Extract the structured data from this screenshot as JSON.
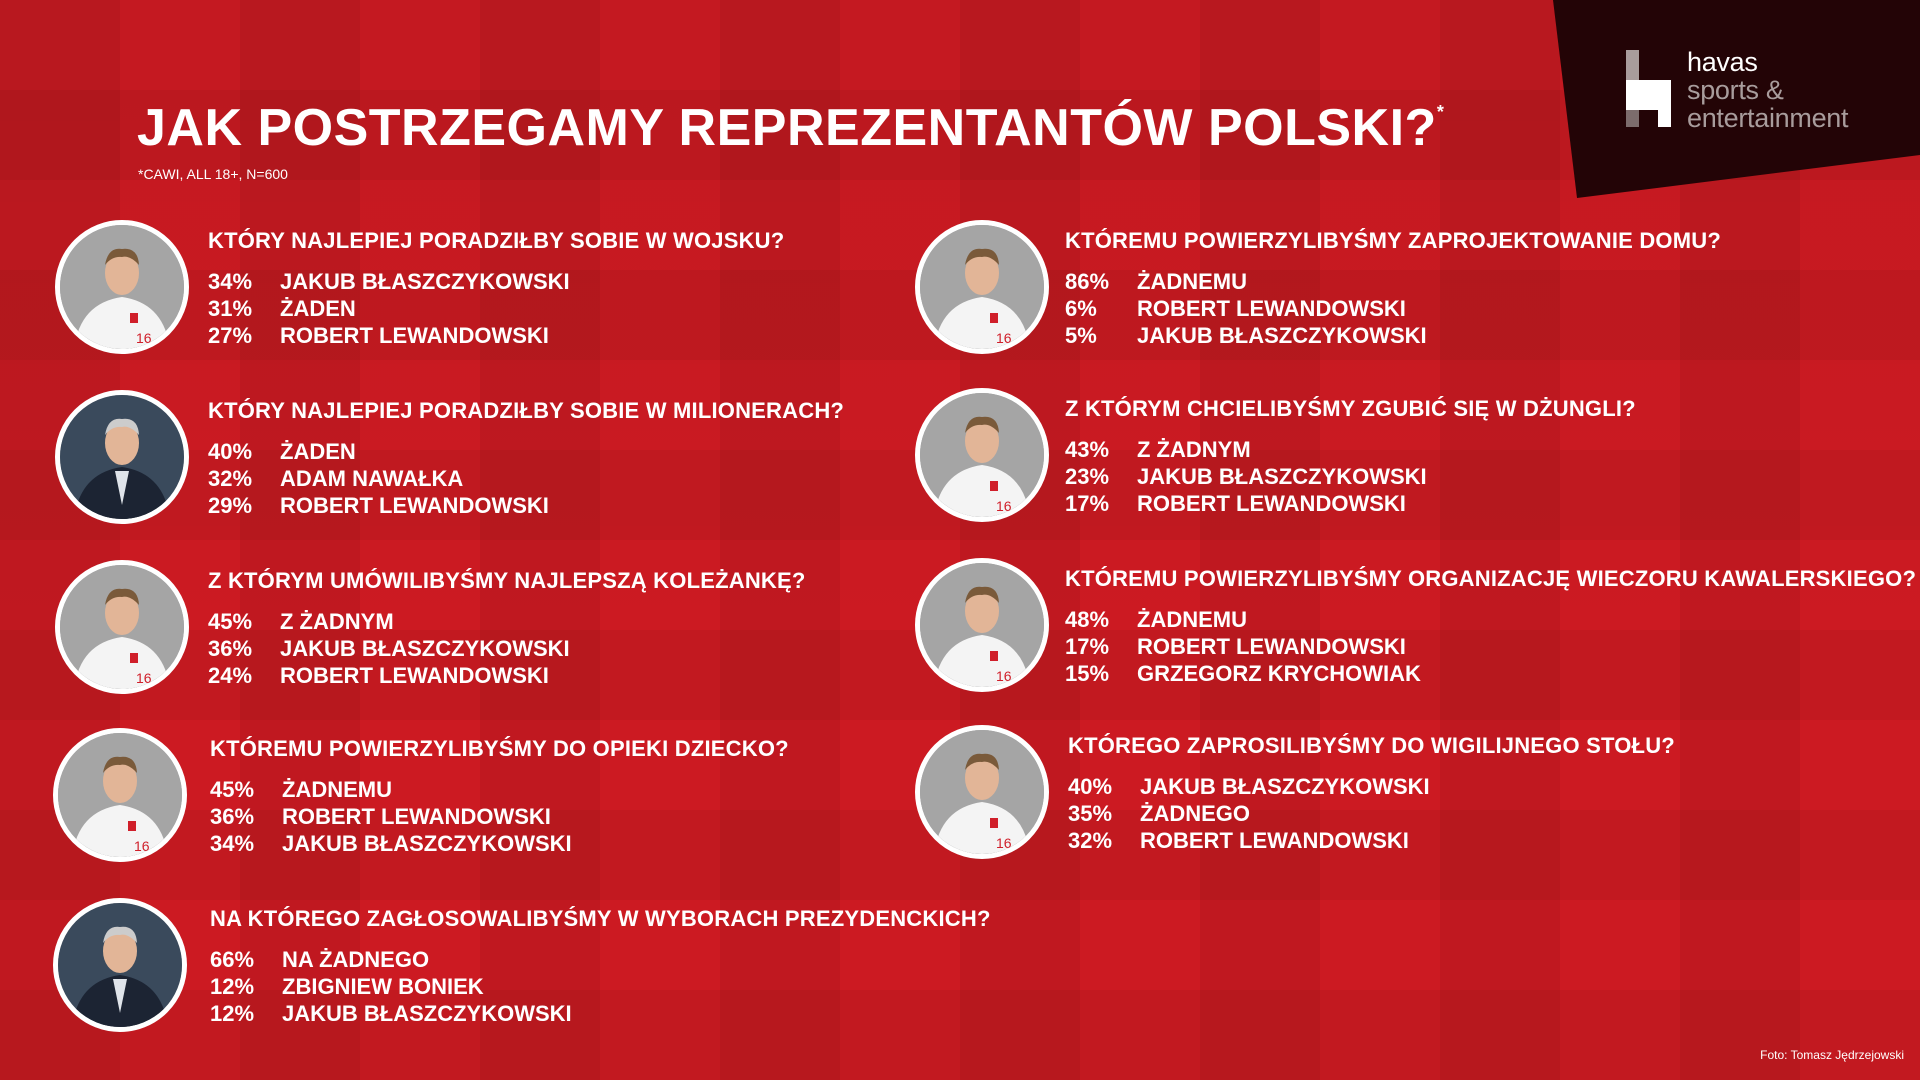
{
  "logo": {
    "line1": "havas",
    "line2": "sports &",
    "line3": "entertainment"
  },
  "title": "JAK POSTRZEGAMY REPREZENTANTÓW POLSKI?",
  "title_mark": "*",
  "note": "*CAWI, ALL 18+, N=600",
  "credit": "Foto: Tomasz Jędrzejowski",
  "questions": [
    {
      "question": "KTÓRY NAJLEPIEJ PORADZIŁBY SOBIE W WOJSKU?",
      "answers": [
        {
          "pct": "34%",
          "name": "JAKUB BŁASZCZYKOWSKI"
        },
        {
          "pct": "31%",
          "name": "ŻADEN"
        },
        {
          "pct": "27%",
          "name": "ROBERT LEWANDOWSKI"
        }
      ]
    },
    {
      "question": "KTÓRY NAJLEPIEJ PORADZIŁBY SOBIE W MILIONERACH?",
      "answers": [
        {
          "pct": "40%",
          "name": "ŻADEN"
        },
        {
          "pct": "32%",
          "name": "ADAM NAWAŁKA"
        },
        {
          "pct": "29%",
          "name": "ROBERT LEWANDOWSKI"
        }
      ]
    },
    {
      "question": "Z KTÓRYM UMÓWILIBYŚMY NAJLEPSZĄ KOLEŻANKĘ?",
      "answers": [
        {
          "pct": "45%",
          "name": "Z ŻADNYM"
        },
        {
          "pct": "36%",
          "name": "JAKUB BŁASZCZYKOWSKI"
        },
        {
          "pct": "24%",
          "name": "ROBERT LEWANDOWSKI"
        }
      ]
    },
    {
      "question": "KTÓREMU POWIERZYLIBYŚMY DO OPIEKI DZIECKO?",
      "answers": [
        {
          "pct": "45%",
          "name": "ŻADNEMU"
        },
        {
          "pct": "36%",
          "name": "ROBERT LEWANDOWSKI"
        },
        {
          "pct": "34%",
          "name": "JAKUB BŁASZCZYKOWSKI"
        }
      ]
    },
    {
      "question": "NA KTÓREGO ZAGŁOSOWALIBYŚMY W WYBORACH PREZYDENCKICH?",
      "answers": [
        {
          "pct": "66%",
          "name": "NA ŻADNEGO"
        },
        {
          "pct": "12%",
          "name": "ZBIGNIEW BONIEK"
        },
        {
          "pct": "12%",
          "name": "JAKUB BŁASZCZYKOWSKI"
        }
      ]
    },
    {
      "question": "KTÓREMU POWIERZYLIBYŚMY ZAPROJEKTOWANIE DOMU?",
      "answers": [
        {
          "pct": "86%",
          "name": "ŻADNEMU"
        },
        {
          "pct": "6%",
          "name": "ROBERT LEWANDOWSKI"
        },
        {
          "pct": "5%",
          "name": "JAKUB BŁASZCZYKOWSKI"
        }
      ]
    },
    {
      "question": "Z KTÓRYM CHCIELIBYŚMY ZGUBIĆ SIĘ W DŻUNGLI?",
      "answers": [
        {
          "pct": "43%",
          "name": "Z ŻADNYM"
        },
        {
          "pct": "23%",
          "name": "JAKUB BŁASZCZYKOWSKI"
        },
        {
          "pct": "17%",
          "name": "ROBERT LEWANDOWSKI"
        }
      ]
    },
    {
      "question": "KTÓREMU POWIERZYLIBYŚMY ORGANIZACJĘ WIECZORU KAWALERSKIEGO?",
      "answers": [
        {
          "pct": "48%",
          "name": "ŻADNEMU"
        },
        {
          "pct": "17%",
          "name": "ROBERT LEWANDOWSKI"
        },
        {
          "pct": "15%",
          "name": "GRZEGORZ KRYCHOWIAK"
        }
      ]
    },
    {
      "question": "KTÓREGO ZAPROSILIBYŚMY DO WIGILIJNEGO STOŁU?",
      "answers": [
        {
          "pct": "40%",
          "name": "JAKUB BŁASZCZYKOWSKI"
        },
        {
          "pct": "35%",
          "name": "ŻADNEGO"
        },
        {
          "pct": "32%",
          "name": "ROBERT LEWANDOWSKI"
        }
      ]
    }
  ],
  "photos": [
    "jersey",
    "suit",
    "jersey",
    "jersey",
    "suit",
    "jersey",
    "jersey",
    "jersey",
    "jersey"
  ]
}
